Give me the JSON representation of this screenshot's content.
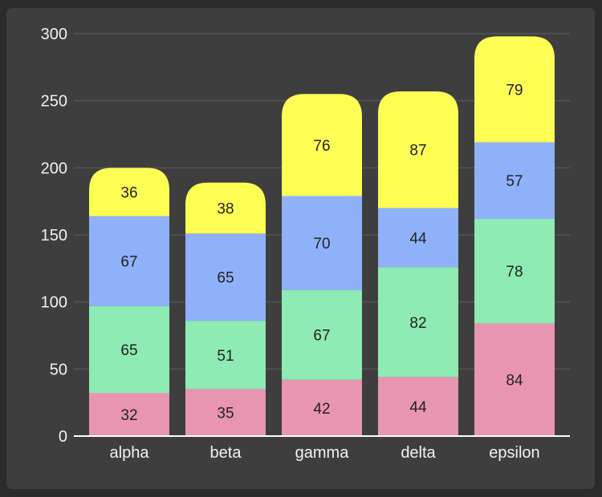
{
  "chart_data": {
    "type": "bar",
    "stacked": true,
    "categories": [
      "alpha",
      "beta",
      "gamma",
      "delta",
      "epsilon"
    ],
    "series": [
      {
        "values": [
          32,
          35,
          42,
          44,
          84
        ],
        "color": "#e795b1"
      },
      {
        "values": [
          65,
          51,
          67,
          82,
          78
        ],
        "color": "#8eebb3"
      },
      {
        "values": [
          67,
          65,
          70,
          44,
          57
        ],
        "color": "#8fb1fa"
      },
      {
        "values": [
          36,
          38,
          76,
          87,
          79
        ],
        "color": "#fefe55"
      }
    ],
    "yticks": [
      "0",
      "50",
      "100",
      "150",
      "200",
      "250",
      "300"
    ],
    "ylim": [
      0,
      300
    ],
    "grid": true,
    "title": "",
    "xlabel": "",
    "ylabel": ""
  },
  "colors": {
    "background": "#2b2b2b",
    "panel": "#3e3e3e",
    "gridline": "#555555",
    "axis": "#ffffff",
    "text": "#f2f2f2",
    "data_label": "#222222"
  }
}
